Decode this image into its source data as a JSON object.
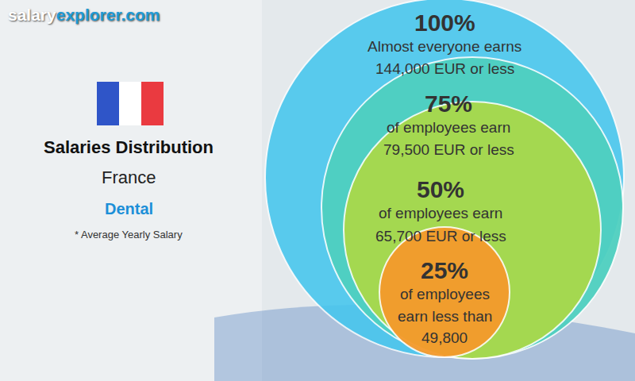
{
  "chart_data": {
    "type": "circles",
    "brand": [
      "salary",
      "explorer.com"
    ],
    "title": "Salaries Distribution",
    "subtitle": "France",
    "category": "Dental",
    "note": "* Average Yearly Salary",
    "levels": [
      {
        "label": "100%",
        "lines": [
          "Almost everyone earns",
          "144,000 EUR or less"
        ],
        "color": "#45c6ee"
      },
      {
        "label": "75%",
        "lines": [
          "of employees earn",
          "79,500 EUR or less"
        ],
        "color": "#4fd0c0"
      },
      {
        "label": "50%",
        "lines": [
          "of employees earn",
          "65,700 EUR or less"
        ],
        "color": "#a9d94a"
      },
      {
        "label": "25%",
        "lines": [
          "of employees",
          "earn less than",
          "49,800"
        ],
        "color": "#f59a2c"
      }
    ]
  }
}
